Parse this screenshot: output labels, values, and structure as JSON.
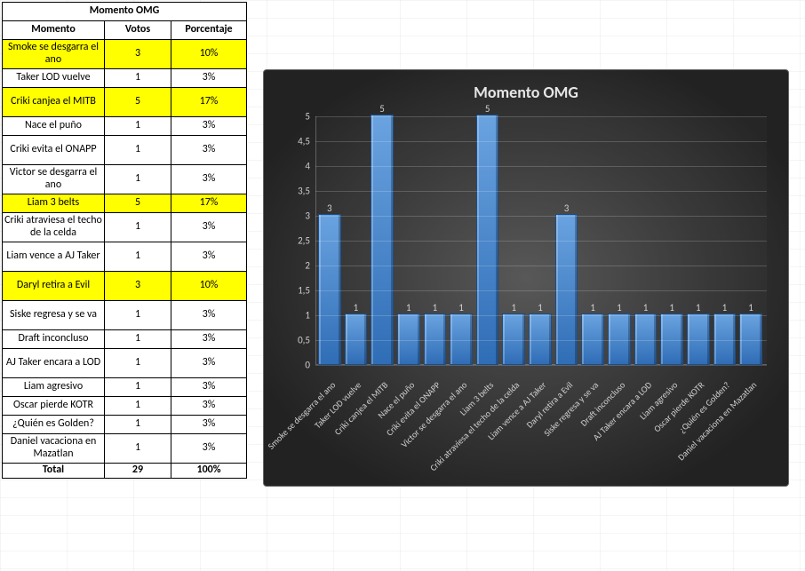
{
  "table": {
    "title": "Momento OMG",
    "headers": {
      "momento": "Momento",
      "votos": "Votos",
      "pct": "Porcentaje"
    },
    "rows": [
      {
        "momento": "Smoke se desgarra el ano",
        "votos": 3,
        "pct": "10%",
        "hl": true
      },
      {
        "momento": "Taker LOD vuelve",
        "votos": 1,
        "pct": "3%",
        "hl": false
      },
      {
        "momento": "Criki canjea el MITB",
        "votos": 5,
        "pct": "17%",
        "hl": true
      },
      {
        "momento": "Nace el puño",
        "votos": 1,
        "pct": "3%",
        "hl": false
      },
      {
        "momento": "Criki evita el ONAPP",
        "votos": 1,
        "pct": "3%",
        "hl": false
      },
      {
        "momento": "Victor se desgarra el ano",
        "votos": 1,
        "pct": "3%",
        "hl": false
      },
      {
        "momento": "Liam 3 belts",
        "votos": 5,
        "pct": "17%",
        "hl": true
      },
      {
        "momento": "Criki atraviesa el techo de la celda",
        "votos": 1,
        "pct": "3%",
        "hl": false
      },
      {
        "momento": "Liam vence a AJ Taker",
        "votos": 1,
        "pct": "3%",
        "hl": false
      },
      {
        "momento": "Daryl retira a Evil",
        "votos": 3,
        "pct": "10%",
        "hl": true
      },
      {
        "momento": "Siske regresa y se va",
        "votos": 1,
        "pct": "3%",
        "hl": false
      },
      {
        "momento": "Draft inconcluso",
        "votos": 1,
        "pct": "3%",
        "hl": false
      },
      {
        "momento": "AJ Taker encara a LOD",
        "votos": 1,
        "pct": "3%",
        "hl": false
      },
      {
        "momento": "Liam agresivo",
        "votos": 1,
        "pct": "3%",
        "hl": false
      },
      {
        "momento": "Oscar pierde KOTR",
        "votos": 1,
        "pct": "3%",
        "hl": false
      },
      {
        "momento": "¿Quién es Golden?",
        "votos": 1,
        "pct": "3%",
        "hl": false
      },
      {
        "momento": "Daniel vacaciona en Mazatlan",
        "votos": 1,
        "pct": "3%",
        "hl": false
      }
    ],
    "total": {
      "label": "Total",
      "votos": 29,
      "pct": "100%"
    },
    "row_heights": {
      "one_line": 18,
      "two_line": 30,
      "three_line": 44
    }
  },
  "chart": {
    "type": "bar",
    "title": "Momento OMG",
    "title_fontsize": 18,
    "title_color": "#e6e6e6",
    "label_color": "#d0d0d0",
    "label_fontsize": 11,
    "xlabel_fontsize": 10,
    "xlabel_rotation_deg": -45,
    "background_gradient": {
      "center": "#555555",
      "edge": "#222222"
    },
    "grid_color": "rgba(255,255,255,0.18)",
    "axis_color": "rgba(255,255,255,0.25)",
    "bar_gradient": {
      "top": "#6aa3e0",
      "bottom": "#2f6db6"
    },
    "bar_border": "#1d4d86",
    "ylim": [
      0,
      5
    ],
    "ytick_step": 0.5,
    "ytick_labels": [
      "0",
      "0,5",
      "1",
      "1,5",
      "2",
      "2,5",
      "3",
      "3,5",
      "4",
      "4,5",
      "5"
    ],
    "categories": [
      "Smoke se desgarra el ano",
      "Taker LOD vuelve",
      "Criki canjea el MITB",
      "Nace el puño",
      "Criki evita el  ONAPP",
      "Victor se desgarra el ano",
      "Liam 3 belts",
      "Criki atraviesa el techo de la celda",
      "Liam vence a AJ Taker",
      "Daryl retira a Evil",
      "Siske regresa y se va",
      "Draft inconcluso",
      "AJ Taker encara a LOD",
      "Liam agresivo",
      "Oscar pierde KOTR",
      "¿Quién es Golden?",
      "Daniel vacaciona en Mazatlan"
    ],
    "values": [
      3,
      1,
      5,
      1,
      1,
      1,
      5,
      1,
      1,
      3,
      1,
      1,
      1,
      1,
      1,
      1,
      1
    ]
  }
}
